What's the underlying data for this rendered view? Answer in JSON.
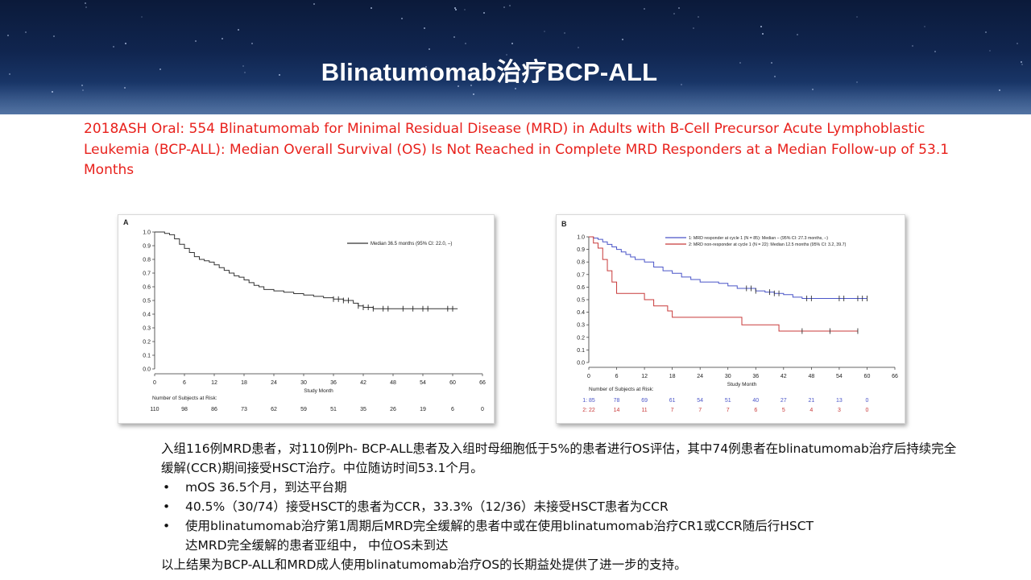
{
  "slide": {
    "title": "Blinatumomab治疗BCP-ALL",
    "subtitle": "2018ASH Oral: 554 Blinatumomab for Minimal Residual Disease (MRD) in Adults with B-Cell Precursor Acute Lymphoblastic Leukemia (BCP-ALL): Median Overall Survival (OS) Is Not Reached in Complete MRD Responders at a Median Follow-up of 53.1 Months",
    "colors": {
      "banner": "#10254f",
      "subtitle": "#e8211c",
      "series_blue": "#4a55c8",
      "series_red": "#c83a3a"
    }
  },
  "notes": {
    "intro": "入组116例MRD患者，对110例Ph- BCP-ALL患者及入组时母细胞低于5%的患者进行OS评估，其中74例患者在blinatumomab治疗后持续完全缓解(CCR)期间接受HSCT治疗。中位随访时间53.1个月。",
    "bullets": [
      {
        "text": "mOS 36.5个月，到达平台期"
      },
      {
        "text": "40.5%（30/74）接受HSCT的患者为CCR，33.3%（12/36）未接受HSCT患者为CCR"
      },
      {
        "line1": "使用blinatumomab治疗第1周期后MRD完全缓解的患者中或在使用blinatumomab治疗CR1或CCR随后行HSCT",
        "line2": "达MRD完全缓解的患者亚组中， 中位OS未到达"
      }
    ],
    "conclusion": "以上结果为BCP-ALL和MRD成人使用blinatumomab治疗OS的长期益处提供了进一步的支持。"
  },
  "chart_data": [
    {
      "type": "line",
      "panel_label": "A",
      "ylabel": "",
      "xlabel": "Study Month",
      "xlim": [
        0,
        66
      ],
      "ylim": [
        0,
        1.0
      ],
      "x_ticks": [
        "0",
        "6",
        "12",
        "18",
        "24",
        "30",
        "36",
        "42",
        "48",
        "54",
        "60",
        "66"
      ],
      "y_ticks": [
        "0.0",
        "0.1",
        "0.2",
        "0.3",
        "0.4",
        "0.5",
        "0.6",
        "0.7",
        "0.8",
        "0.9",
        "1.0"
      ],
      "series": [
        {
          "name": "Median 36.5 months (95% CI: 22.0, –)",
          "color": "#333333",
          "points": [
            [
              0,
              1.0
            ],
            [
              2,
              0.99
            ],
            [
              3,
              0.98
            ],
            [
              4,
              0.95
            ],
            [
              5,
              0.91
            ],
            [
              6,
              0.88
            ],
            [
              7,
              0.85
            ],
            [
              8,
              0.82
            ],
            [
              9,
              0.8
            ],
            [
              10,
              0.79
            ],
            [
              11,
              0.78
            ],
            [
              12,
              0.76
            ],
            [
              13,
              0.74
            ],
            [
              14,
              0.72
            ],
            [
              15,
              0.7
            ],
            [
              16,
              0.68
            ],
            [
              17,
              0.67
            ],
            [
              18,
              0.65
            ],
            [
              19,
              0.63
            ],
            [
              20,
              0.61
            ],
            [
              21,
              0.6
            ],
            [
              22,
              0.58
            ],
            [
              24,
              0.57
            ],
            [
              26,
              0.56
            ],
            [
              28,
              0.55
            ],
            [
              30,
              0.54
            ],
            [
              32,
              0.53
            ],
            [
              34,
              0.52
            ],
            [
              36,
              0.51
            ],
            [
              38,
              0.5
            ],
            [
              40,
              0.48
            ],
            [
              41,
              0.46
            ],
            [
              42,
              0.45
            ],
            [
              44,
              0.44
            ],
            [
              50,
              0.44
            ],
            [
              60,
              0.44
            ],
            [
              61,
              0.44
            ]
          ],
          "censors": [
            36,
            37,
            38,
            39,
            41,
            42,
            43,
            44,
            46,
            47,
            50,
            52,
            54,
            55,
            59,
            60
          ]
        }
      ],
      "risk_table": {
        "title": "Number of Subjects at Risk:",
        "rows": [
          {
            "label": "",
            "values": [
              "110",
              "98",
              "86",
              "73",
              "62",
              "59",
              "51",
              "35",
              "26",
              "19",
              "6",
              "0"
            ]
          }
        ]
      }
    },
    {
      "type": "line",
      "panel_label": "B",
      "ylabel": "",
      "xlabel": "Study Month",
      "xlim": [
        0,
        66
      ],
      "ylim": [
        0,
        1.0
      ],
      "x_ticks": [
        "0",
        "6",
        "12",
        "18",
        "24",
        "30",
        "36",
        "42",
        "48",
        "54",
        "60",
        "66"
      ],
      "y_ticks": [
        "0.0",
        "0.1",
        "0.2",
        "0.3",
        "0.4",
        "0.5",
        "0.6",
        "0.7",
        "0.8",
        "0.9",
        "1.0"
      ],
      "series": [
        {
          "name": "1: MRD responder at cycle 1 (N = 85): Median – (95% CI: 27.3 months, –)",
          "color": "#4a55c8",
          "points": [
            [
              0,
              1.0
            ],
            [
              1,
              0.99
            ],
            [
              2,
              0.98
            ],
            [
              3,
              0.96
            ],
            [
              4,
              0.94
            ],
            [
              5,
              0.92
            ],
            [
              6,
              0.9
            ],
            [
              7,
              0.88
            ],
            [
              8,
              0.86
            ],
            [
              9,
              0.84
            ],
            [
              10,
              0.82
            ],
            [
              12,
              0.8
            ],
            [
              14,
              0.76
            ],
            [
              16,
              0.73
            ],
            [
              18,
              0.71
            ],
            [
              20,
              0.68
            ],
            [
              22,
              0.66
            ],
            [
              24,
              0.64
            ],
            [
              28,
              0.63
            ],
            [
              30,
              0.61
            ],
            [
              32,
              0.59
            ],
            [
              36,
              0.57
            ],
            [
              38,
              0.56
            ],
            [
              40,
              0.55
            ],
            [
              42,
              0.54
            ],
            [
              44,
              0.52
            ],
            [
              46,
              0.51
            ],
            [
              48,
              0.51
            ],
            [
              54,
              0.51
            ],
            [
              60,
              0.51
            ]
          ],
          "censors": [
            34,
            35,
            36,
            39,
            40,
            41,
            47,
            48,
            54,
            55,
            58,
            59,
            60
          ]
        },
        {
          "name": "2: MRD non-responder at cycle 1 (N = 22): Median 12.5 months (95% CI: 3.2, 39.7)",
          "color": "#c83a3a",
          "points": [
            [
              0,
              1.0
            ],
            [
              1,
              0.95
            ],
            [
              2,
              0.91
            ],
            [
              3,
              0.82
            ],
            [
              4,
              0.73
            ],
            [
              5,
              0.64
            ],
            [
              6,
              0.55
            ],
            [
              8,
              0.55
            ],
            [
              10,
              0.55
            ],
            [
              12,
              0.5
            ],
            [
              14,
              0.45
            ],
            [
              16,
              0.45
            ],
            [
              17,
              0.41
            ],
            [
              18,
              0.36
            ],
            [
              24,
              0.36
            ],
            [
              30,
              0.36
            ],
            [
              33,
              0.3
            ],
            [
              36,
              0.3
            ],
            [
              40,
              0.3
            ],
            [
              41,
              0.25
            ],
            [
              50,
              0.25
            ],
            [
              58,
              0.25
            ]
          ],
          "censors": [
            46,
            52,
            58
          ]
        }
      ],
      "risk_table": {
        "title": "Number of Subjects at Risk:",
        "rows": [
          {
            "label": "1: 85",
            "color": "#4a55c8",
            "values": [
              "78",
              "69",
              "61",
              "54",
              "51",
              "40",
              "27",
              "21",
              "13",
              "0"
            ]
          },
          {
            "label": "2: 22",
            "color": "#c83a3a",
            "values": [
              "14",
              "11",
              "7",
              "7",
              "7",
              "6",
              "5",
              "4",
              "3",
              "0"
            ]
          }
        ]
      }
    }
  ]
}
